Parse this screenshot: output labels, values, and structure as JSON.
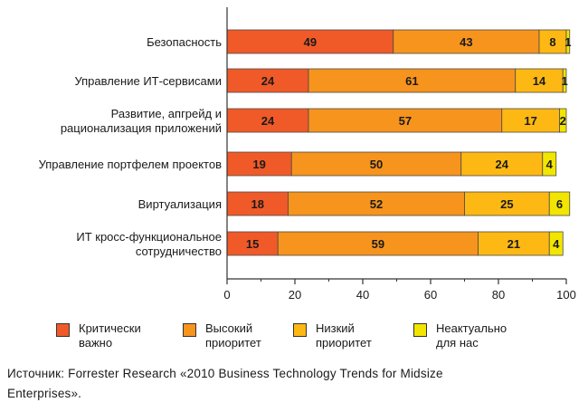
{
  "chart_data": {
    "type": "bar",
    "orientation": "horizontal",
    "stacked": true,
    "categories": [
      [
        "Безопасность"
      ],
      [
        "Управление ИТ-сервисами"
      ],
      [
        "Развитие, апгрейд и",
        "рационализация приложений"
      ],
      [
        "Управление портфелем проектов"
      ],
      [
        "Виртуализация"
      ],
      [
        "ИТ кросс-функциональное",
        "сотрудничество"
      ]
    ],
    "series": [
      {
        "name": [
          "Критически",
          "важно"
        ],
        "color": "#f05a28",
        "values": [
          49,
          24,
          24,
          19,
          18,
          15
        ]
      },
      {
        "name": [
          "Высокий",
          "приоритет"
        ],
        "color": "#f7941d",
        "values": [
          43,
          61,
          57,
          50,
          52,
          59
        ]
      },
      {
        "name": [
          "Низкий",
          "приоритет"
        ],
        "color": "#fdb813",
        "values": [
          8,
          14,
          17,
          24,
          25,
          21
        ]
      },
      {
        "name": [
          "Неактуально",
          "для нас"
        ],
        "color": "#f2e500",
        "values": [
          1,
          1,
          2,
          4,
          6,
          4
        ]
      }
    ],
    "xlim": [
      0,
      100
    ],
    "xticks": [
      0,
      20,
      40,
      60,
      80,
      100
    ],
    "grid": false,
    "legend": "bottom"
  },
  "source": "Источник: Forrester Research «2010 Business Technology Trends for Midsize Enterprises»."
}
